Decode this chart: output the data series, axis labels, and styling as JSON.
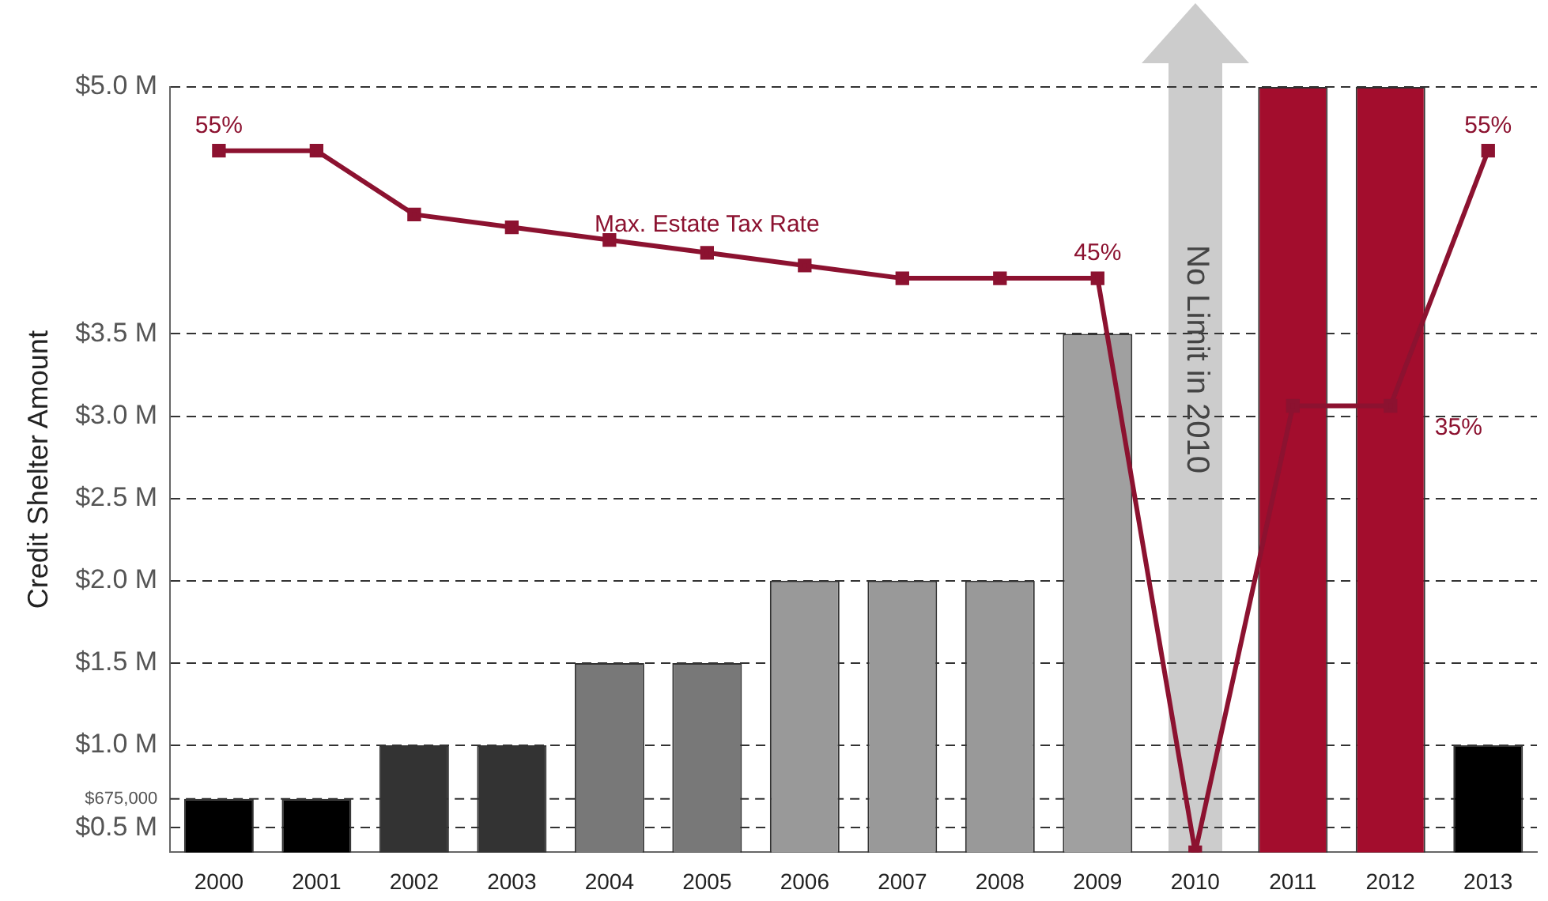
{
  "chart_data": {
    "type": "bar",
    "ylabel": "Credit Shelter Amount",
    "categories": [
      "2000",
      "2001",
      "2002",
      "2003",
      "2004",
      "2005",
      "2006",
      "2007",
      "2008",
      "2009",
      "2010",
      "2011",
      "2012",
      "2013"
    ],
    "series": [
      {
        "colors": [
          "#000000",
          "#000000",
          "#333333",
          "#333333",
          "#787878",
          "#787878",
          "#999999",
          "#999999",
          "#999999",
          "#a0a0a0",
          null,
          "#a30d2d",
          "#a30d2d",
          "#000000"
        ],
        "values": [
          0.675,
          0.675,
          1.0,
          1.0,
          1.5,
          1.5,
          2.0,
          2.0,
          2.0,
          3.5,
          null,
          5.0,
          5.0,
          1.0
        ]
      },
      {
        "type": "line",
        "name": "Max. Estate Tax Rate",
        "axis": "y2",
        "color": "#8c1230",
        "marker": "square",
        "values": [
          55,
          55,
          50,
          49,
          48,
          47,
          46,
          45,
          45,
          45,
          0,
          35,
          35,
          55
        ],
        "value_labels": [
          "55%",
          null,
          null,
          null,
          null,
          null,
          null,
          null,
          null,
          "45%",
          null,
          null,
          "35%",
          "55%"
        ]
      }
    ],
    "ylim": [
      0.35,
      5.0
    ],
    "yticks": [
      {
        "value": 0.5,
        "label": "$0.5 M"
      },
      {
        "value": 1.0,
        "label": "$1.0 M"
      },
      {
        "value": 1.5,
        "label": "$1.5 M"
      },
      {
        "value": 2.0,
        "label": "$2.0 M"
      },
      {
        "value": 2.5,
        "label": "$2.5 M"
      },
      {
        "value": 3.0,
        "label": "$3.0 M"
      },
      {
        "value": 3.5,
        "label": "$3.5 M"
      },
      {
        "value": 5.0,
        "label": "$5.0 M"
      }
    ],
    "y2lim": [
      0,
      60
    ],
    "ref_lines": [
      {
        "axis": "y",
        "value": 0.675,
        "label": "$675,000",
        "line_style": "dashed",
        "color": "#333333"
      }
    ],
    "grid": "y",
    "legend": false,
    "line_style": "solid",
    "annotations": [
      "No Limit in 2010"
    ]
  }
}
